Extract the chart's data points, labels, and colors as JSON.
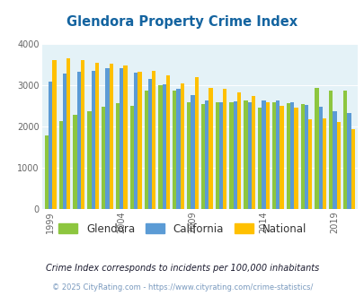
{
  "title": "Glendora Property Crime Index",
  "title_color": "#1464a0",
  "years": [
    1999,
    2000,
    2001,
    2002,
    2003,
    2004,
    2005,
    2006,
    2007,
    2008,
    2009,
    2010,
    2011,
    2012,
    2013,
    2014,
    2015,
    2016,
    2017,
    2018,
    2019,
    2020
  ],
  "glendora": [
    1780,
    2130,
    2290,
    2370,
    2490,
    2560,
    2500,
    2870,
    3000,
    2870,
    2600,
    2540,
    2590,
    2600,
    2640,
    2450,
    2590,
    2560,
    2540,
    2940,
    2880,
    2880
  ],
  "california": [
    3100,
    3300,
    3330,
    3360,
    3430,
    3430,
    3310,
    3150,
    3020,
    2910,
    2770,
    2630,
    2590,
    2620,
    2600,
    2640,
    2630,
    2590,
    2520,
    2490,
    2370,
    2340
  ],
  "national": [
    3620,
    3660,
    3610,
    3560,
    3520,
    3480,
    3330,
    3360,
    3250,
    3040,
    3210,
    2950,
    2920,
    2840,
    2740,
    2600,
    2500,
    2450,
    2180,
    2190,
    2100,
    1940
  ],
  "glendora_color": "#8DC63F",
  "california_color": "#5B9BD5",
  "national_color": "#FFC000",
  "ylim": [
    0,
    4000
  ],
  "yticks": [
    0,
    1000,
    2000,
    3000,
    4000
  ],
  "xtick_years": [
    1999,
    2004,
    2009,
    2014,
    2019
  ],
  "bg_color": "#E4F2F7",
  "fig_bg": "#ffffff",
  "legend_labels": [
    "Glendora",
    "California",
    "National"
  ],
  "footnote1": "Crime Index corresponds to incidents per 100,000 inhabitants",
  "footnote2": "© 2025 CityRating.com - https://www.cityrating.com/crime-statistics/",
  "footnote1_color": "#1a1a2e",
  "footnote2_color": "#7a9abf"
}
